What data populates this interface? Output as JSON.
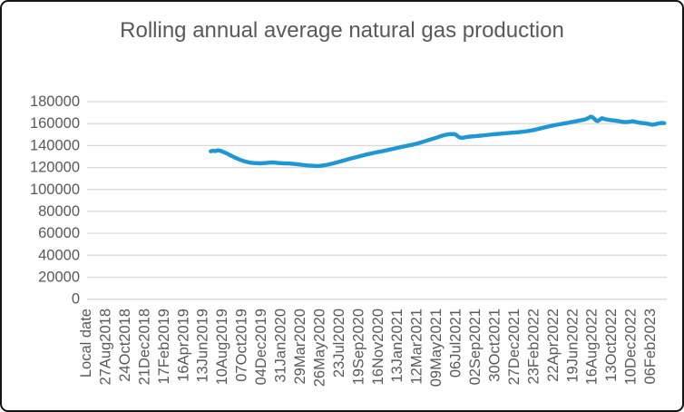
{
  "window": {
    "background_color": "#ffffff",
    "border_color": "#141414"
  },
  "chart_data": {
    "type": "line",
    "title": "Rolling annual average natural gas production",
    "xlabel": "Local date",
    "ylabel": "",
    "ylim": [
      0,
      180000
    ],
    "y_tick_interval": 20000,
    "y_ticks": [
      180000,
      160000,
      140000,
      120000,
      100000,
      80000,
      60000,
      40000,
      20000,
      0
    ],
    "y_tick_labels": [
      "180000",
      "160000",
      "140000",
      "120000",
      "100000",
      "80000",
      "60000",
      "40000",
      "20000",
      "0"
    ],
    "x_tick_labels": [
      "Local date",
      "27Aug2018",
      "24Oct2018",
      "21Dec2018",
      "17Feb2019",
      "16Apr2019",
      "13Jun2019",
      "10Aug2019",
      "07Oct2019",
      "04Dec2019",
      "31Jan2020",
      "29Mar2020",
      "26May2020",
      "23Jul2020",
      "19Sep2020",
      "16Nov2020",
      "13Jan2021",
      "12Mar2021",
      "09May2021",
      "06Jul2021",
      "02Sep2021",
      "30Oct2021",
      "27Dec2021",
      "23Feb2022",
      "22Apr2022",
      "19Jun2022",
      "16Aug2022",
      "13Oct2022",
      "10Dec2022",
      "06Feb2023"
    ],
    "x_tick_label_rotation_deg": 90,
    "grid": "horizontal",
    "legend_position": "none",
    "colors": {
      "line": "#1e97d4",
      "grid": "#d9d9d9",
      "text": "#595959"
    },
    "series": [
      {
        "name": "Rolling annual average natural gas production",
        "color": "#1e97d4",
        "x_unit": "index into x_tick_labels (fractional = between ticks)",
        "points": [
          [
            6.4,
            134800
          ],
          [
            6.5,
            135300
          ],
          [
            6.62,
            134900
          ],
          [
            6.75,
            135600
          ],
          [
            6.9,
            135200
          ],
          [
            7.0,
            134500
          ],
          [
            7.15,
            133400
          ],
          [
            7.3,
            132100
          ],
          [
            7.45,
            130700
          ],
          [
            7.6,
            129400
          ],
          [
            7.75,
            128200
          ],
          [
            7.9,
            127100
          ],
          [
            8.05,
            126100
          ],
          [
            8.2,
            125300
          ],
          [
            8.35,
            124700
          ],
          [
            8.5,
            124300
          ],
          [
            8.65,
            124000
          ],
          [
            8.8,
            123900
          ],
          [
            8.95,
            123800
          ],
          [
            9.1,
            123900
          ],
          [
            9.25,
            124100
          ],
          [
            9.4,
            124400
          ],
          [
            9.55,
            124600
          ],
          [
            9.7,
            124400
          ],
          [
            9.85,
            124100
          ],
          [
            10.0,
            123900
          ],
          [
            10.15,
            123800
          ],
          [
            10.3,
            123700
          ],
          [
            10.45,
            123600
          ],
          [
            10.6,
            123400
          ],
          [
            10.75,
            123100
          ],
          [
            10.9,
            122800
          ],
          [
            11.05,
            122500
          ],
          [
            11.2,
            122200
          ],
          [
            11.35,
            121900
          ],
          [
            11.5,
            121700
          ],
          [
            11.65,
            121500
          ],
          [
            11.8,
            121400
          ],
          [
            11.95,
            121400
          ],
          [
            12.1,
            121600
          ],
          [
            12.25,
            122000
          ],
          [
            12.4,
            122500
          ],
          [
            12.55,
            123100
          ],
          [
            12.7,
            123800
          ],
          [
            12.85,
            124500
          ],
          [
            13.0,
            125200
          ],
          [
            13.2,
            126200
          ],
          [
            13.4,
            127200
          ],
          [
            13.6,
            128200
          ],
          [
            13.8,
            129100
          ],
          [
            14.0,
            130000
          ],
          [
            14.2,
            130900
          ],
          [
            14.4,
            131800
          ],
          [
            14.6,
            132600
          ],
          [
            14.8,
            133400
          ],
          [
            15.0,
            134100
          ],
          [
            15.2,
            134800
          ],
          [
            15.4,
            135500
          ],
          [
            15.6,
            136300
          ],
          [
            15.8,
            137100
          ],
          [
            16.0,
            137900
          ],
          [
            16.2,
            138700
          ],
          [
            16.4,
            139400
          ],
          [
            16.6,
            140100
          ],
          [
            16.8,
            140900
          ],
          [
            17.0,
            141800
          ],
          [
            17.2,
            142800
          ],
          [
            17.4,
            143900
          ],
          [
            17.6,
            145000
          ],
          [
            17.8,
            146100
          ],
          [
            18.0,
            147200
          ],
          [
            18.15,
            148100
          ],
          [
            18.3,
            149000
          ],
          [
            18.45,
            149700
          ],
          [
            18.6,
            150200
          ],
          [
            18.75,
            150500
          ],
          [
            18.9,
            150400
          ],
          [
            19.0,
            149800
          ],
          [
            19.1,
            148400
          ],
          [
            19.2,
            147300
          ],
          [
            19.3,
            147000
          ],
          [
            19.45,
            147400
          ],
          [
            19.6,
            147900
          ],
          [
            19.75,
            148200
          ],
          [
            19.9,
            148400
          ],
          [
            20.1,
            148700
          ],
          [
            20.3,
            149000
          ],
          [
            20.5,
            149400
          ],
          [
            20.7,
            149800
          ],
          [
            20.9,
            150200
          ],
          [
            21.1,
            150500
          ],
          [
            21.3,
            150800
          ],
          [
            21.5,
            151100
          ],
          [
            21.7,
            151400
          ],
          [
            21.9,
            151700
          ],
          [
            22.1,
            152000
          ],
          [
            22.3,
            152300
          ],
          [
            22.5,
            152700
          ],
          [
            22.7,
            153200
          ],
          [
            22.9,
            153800
          ],
          [
            23.1,
            154500
          ],
          [
            23.3,
            155400
          ],
          [
            23.5,
            156300
          ],
          [
            23.7,
            157200
          ],
          [
            23.9,
            157900
          ],
          [
            24.1,
            158600
          ],
          [
            24.3,
            159300
          ],
          [
            24.5,
            159900
          ],
          [
            24.7,
            160500
          ],
          [
            24.9,
            161200
          ],
          [
            25.1,
            161900
          ],
          [
            25.3,
            162600
          ],
          [
            25.5,
            163300
          ],
          [
            25.65,
            163900
          ],
          [
            25.8,
            165000
          ],
          [
            25.92,
            166300
          ],
          [
            26.0,
            166000
          ],
          [
            26.1,
            164600
          ],
          [
            26.2,
            162800
          ],
          [
            26.3,
            162400
          ],
          [
            26.4,
            163600
          ],
          [
            26.5,
            164900
          ],
          [
            26.62,
            164300
          ],
          [
            26.75,
            163700
          ],
          [
            26.9,
            163300
          ],
          [
            27.05,
            163000
          ],
          [
            27.2,
            162700
          ],
          [
            27.35,
            162300
          ],
          [
            27.5,
            161700
          ],
          [
            27.65,
            161300
          ],
          [
            27.8,
            161400
          ],
          [
            27.95,
            161800
          ],
          [
            28.1,
            162100
          ],
          [
            28.25,
            161500
          ],
          [
            28.4,
            160900
          ],
          [
            28.55,
            160500
          ],
          [
            28.7,
            160300
          ],
          [
            28.85,
            159900
          ],
          [
            29.0,
            159300
          ],
          [
            29.1,
            158900
          ],
          [
            29.25,
            159400
          ],
          [
            29.4,
            160100
          ],
          [
            29.55,
            160600
          ],
          [
            29.7,
            160400
          ]
        ]
      }
    ]
  }
}
